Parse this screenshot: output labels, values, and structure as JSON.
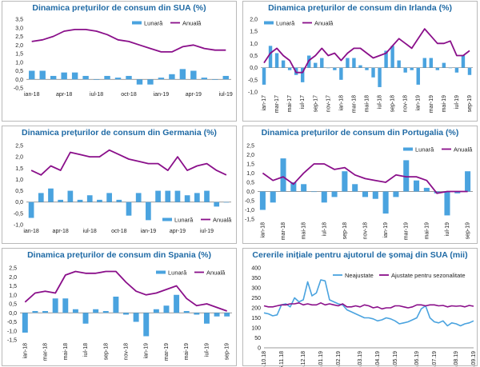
{
  "colors": {
    "monthly": "#4aa3df",
    "annual": "#8a0f8a",
    "claims_raw": "#4aa3df",
    "claims_sa": "#8a0f8a",
    "title": "#1f6aa5"
  },
  "chart_data": [
    {
      "id": "sua",
      "type": "bar+line",
      "title": "Dinamica prețurilor de consum din SUA (%)",
      "legend": [
        "Lunară",
        "Anuală"
      ],
      "legend_position": "top-right",
      "ylim": [
        -0.5,
        3.5
      ],
      "yticks": [
        "-0,5",
        "0,0",
        "0,5",
        "1,0",
        "1,5",
        "2,0",
        "2,5",
        "3,0",
        "3,5"
      ],
      "ytick_values": [
        -0.5,
        0,
        0.5,
        1,
        1.5,
        2,
        2.5,
        3,
        3.5
      ],
      "xtick_labels": [
        "ian-18",
        "apr-18",
        "iul-18",
        "oct-18",
        "ian-19",
        "apr-19",
        "iul-19"
      ],
      "xtick_index": [
        0,
        3,
        6,
        9,
        12,
        15,
        18
      ],
      "categories": [
        "ian-18",
        "feb-18",
        "mar-18",
        "apr-18",
        "mai-18",
        "iun-18",
        "iul-18",
        "aug-18",
        "sep-18",
        "oct-18",
        "noi-18",
        "dec-18",
        "ian-19",
        "feb-19",
        "mar-19",
        "apr-19",
        "mai-19",
        "iun-19",
        "iul-19"
      ],
      "monthly": [
        0.5,
        0.5,
        0.2,
        0.4,
        0.4,
        0.2,
        0.0,
        0.2,
        0.1,
        0.2,
        -0.3,
        -0.3,
        0.1,
        0.3,
        0.6,
        0.5,
        0.1,
        0.0,
        0.2
      ],
      "annual": [
        2.2,
        2.3,
        2.5,
        2.8,
        2.9,
        2.9,
        2.8,
        2.6,
        2.3,
        2.2,
        2.0,
        1.8,
        1.6,
        1.6,
        1.9,
        2.0,
        1.8,
        1.7,
        1.7
      ]
    },
    {
      "id": "irlanda",
      "type": "bar+line",
      "title": "Dinamica prețurilor de consum din Irlanda (%)",
      "legend": [
        "Lunară",
        "Anuală"
      ],
      "legend_position": "top-left",
      "ylim": [
        -1.0,
        2.0
      ],
      "yticks": [
        "-1,0",
        "-0,5",
        "0,0",
        "0,5",
        "1,0",
        "1,5",
        "2,0"
      ],
      "ytick_values": [
        -1,
        -0.5,
        0,
        0.5,
        1,
        1.5,
        2
      ],
      "xtick_labels": [
        "ian-17",
        "mar-17",
        "mai-17",
        "iul-17",
        "sep-17",
        "nov-17",
        "ian-18",
        "mar-18",
        "mai-18",
        "iul-18",
        "sep-18",
        "nov-18",
        "ian-19",
        "mar-19",
        "mai-19",
        "iul-19",
        "sep-19"
      ],
      "xtick_index": [
        0,
        2,
        4,
        6,
        8,
        10,
        12,
        14,
        16,
        18,
        20,
        22,
        24,
        26,
        28,
        30,
        32
      ],
      "categories": [
        "ian-17",
        "feb-17",
        "mar-17",
        "apr-17",
        "mai-17",
        "iun-17",
        "iul-17",
        "aug-17",
        "sep-17",
        "oct-17",
        "noi-17",
        "dec-17",
        "ian-18",
        "feb-18",
        "mar-18",
        "apr-18",
        "mai-18",
        "iun-18",
        "iul-18",
        "aug-18",
        "sep-18",
        "oct-18",
        "noi-18",
        "dec-18",
        "ian-19",
        "feb-19",
        "mar-19",
        "apr-19",
        "mai-19",
        "iun-19",
        "iul-19",
        "aug-19",
        "sep-19"
      ],
      "monthly": [
        -0.7,
        0.9,
        0.6,
        0.3,
        -0.1,
        -0.3,
        -0.6,
        0.5,
        0.2,
        0.4,
        0.0,
        -0.1,
        -0.5,
        0.4,
        0.4,
        0.1,
        -0.1,
        -0.4,
        -0.8,
        0.7,
        0.9,
        0.3,
        -0.2,
        -0.1,
        -0.7,
        0.4,
        0.4,
        -0.1,
        0.2,
        0.0,
        -0.2,
        0.5,
        -0.3
      ],
      "annual": [
        0.2,
        0.6,
        0.8,
        0.5,
        0.3,
        -0.2,
        -0.2,
        0.3,
        0.5,
        0.8,
        0.5,
        0.6,
        0.3,
        0.6,
        0.8,
        0.8,
        0.6,
        0.4,
        0.5,
        0.6,
        0.9,
        1.2,
        1.0,
        0.8,
        1.2,
        1.6,
        1.3,
        1.0,
        1.0,
        1.1,
        0.5,
        0.5,
        0.7
      ]
    },
    {
      "id": "germania",
      "type": "bar+line",
      "title": "Dinamica prețurilor de consum din Germania (%)",
      "legend": [
        "Lunară",
        "Anuală"
      ],
      "legend_position": "bottom-right",
      "ylim": [
        -1.0,
        2.5
      ],
      "yticks": [
        "-1,0",
        "-0,5",
        "0,0",
        "0,5",
        "1,0",
        "1,5",
        "2,0",
        "2,5"
      ],
      "ytick_values": [
        -1,
        -0.5,
        0,
        0.5,
        1,
        1.5,
        2,
        2.5
      ],
      "xtick_labels": [
        "ian-18",
        "apr-18",
        "iul-18",
        "oct-18",
        "ian-19",
        "apr-19",
        "iul-19"
      ],
      "xtick_index": [
        0,
        3,
        6,
        9,
        12,
        15,
        18
      ],
      "categories": [
        "ian-18",
        "feb-18",
        "mar-18",
        "apr-18",
        "mai-18",
        "iun-18",
        "iul-18",
        "aug-18",
        "sep-18",
        "oct-18",
        "noi-18",
        "dec-18",
        "ian-19",
        "feb-19",
        "mar-19",
        "apr-19",
        "mai-19",
        "iun-19",
        "iul-19",
        "aug-19",
        "sep-19"
      ],
      "monthly": [
        -0.7,
        0.4,
        0.6,
        0.1,
        0.5,
        0.1,
        0.3,
        0.1,
        0.4,
        0.1,
        -0.6,
        0.4,
        -0.8,
        0.5,
        0.5,
        0.5,
        0.3,
        0.4,
        0.5,
        -0.2,
        0.0
      ],
      "annual": [
        1.4,
        1.2,
        1.6,
        1.4,
        2.2,
        2.1,
        2.0,
        2.0,
        2.3,
        2.1,
        1.9,
        1.8,
        1.7,
        1.7,
        1.4,
        2.0,
        1.4,
        1.6,
        1.7,
        1.4,
        1.2
      ]
    },
    {
      "id": "portugalia",
      "type": "bar+line",
      "title": "Dinamica prețurilor de consum din Portugalia (%)",
      "legend": [
        "Lunară",
        "Anuală"
      ],
      "legend_position": "top-right",
      "ylim": [
        -1.5,
        2.5
      ],
      "yticks": [
        "-1,5",
        "-1,0",
        "-0,5",
        "0,0",
        "0,5",
        "1,0",
        "1,5",
        "2,0",
        "2,5"
      ],
      "ytick_values": [
        -1.5,
        -1,
        -0.5,
        0,
        0.5,
        1,
        1.5,
        2,
        2.5
      ],
      "xtick_labels": [
        "ian-18",
        "mar-18",
        "mai-18",
        "iul-18",
        "sep-18",
        "nov-18",
        "ian-19",
        "mar-19",
        "mai-19",
        "iul-19",
        "sep-19"
      ],
      "xtick_index": [
        0,
        2,
        4,
        6,
        8,
        10,
        12,
        14,
        16,
        18,
        20
      ],
      "categories": [
        "ian-18",
        "feb-18",
        "mar-18",
        "apr-18",
        "mai-18",
        "iun-18",
        "iul-18",
        "aug-18",
        "sep-18",
        "oct-18",
        "noi-18",
        "dec-18",
        "ian-19",
        "feb-19",
        "mar-19",
        "apr-19",
        "mai-19",
        "iun-19",
        "iul-19",
        "aug-19",
        "sep-19"
      ],
      "monthly": [
        -1.0,
        -0.6,
        1.8,
        0.5,
        0.4,
        0.0,
        -0.6,
        -0.3,
        1.1,
        0.4,
        -0.3,
        -0.4,
        -1.2,
        -0.3,
        1.7,
        0.6,
        0.2,
        -0.1,
        -1.3,
        -0.1,
        1.1
      ],
      "annual": [
        1.0,
        0.6,
        0.8,
        0.4,
        1.0,
        1.5,
        1.5,
        1.2,
        1.3,
        0.9,
        0.7,
        0.6,
        0.5,
        0.9,
        0.8,
        0.8,
        0.6,
        -0.1,
        0.0,
        0.0,
        0.0
      ]
    },
    {
      "id": "spania",
      "type": "bar+line",
      "title": "Dinamica prețurilor de consum din Spania (%)",
      "legend": [
        "Lunară",
        "Anuală"
      ],
      "legend_position": "top-right",
      "ylim": [
        -1.5,
        2.5
      ],
      "yticks": [
        "-1,5",
        "-1,0",
        "-0,5",
        "0,0",
        "0,5",
        "1,0",
        "1,5",
        "2,0",
        "2,5"
      ],
      "ytick_values": [
        -1.5,
        -1,
        -0.5,
        0,
        0.5,
        1,
        1.5,
        2,
        2.5
      ],
      "xtick_labels": [
        "ian-18",
        "mar-18",
        "mai-18",
        "iul-18",
        "sep-18",
        "nov-18",
        "ian-19",
        "mar-19",
        "mai-19",
        "iul-19",
        "sep-19"
      ],
      "xtick_index": [
        0,
        2,
        4,
        6,
        8,
        10,
        12,
        14,
        16,
        18,
        20
      ],
      "categories": [
        "ian-18",
        "feb-18",
        "mar-18",
        "apr-18",
        "mai-18",
        "iun-18",
        "iul-18",
        "aug-18",
        "sep-18",
        "oct-18",
        "noi-18",
        "dec-18",
        "ian-19",
        "feb-19",
        "mar-19",
        "apr-19",
        "mai-19",
        "iun-19",
        "iul-19",
        "aug-19",
        "sep-19"
      ],
      "monthly": [
        -1.1,
        0.1,
        0.1,
        0.8,
        0.8,
        0.2,
        -0.6,
        0.2,
        0.1,
        0.9,
        -0.1,
        -0.5,
        -1.3,
        0.2,
        0.4,
        1.0,
        0.1,
        -0.1,
        -0.6,
        -0.2,
        -0.2
      ],
      "annual": [
        0.6,
        1.1,
        1.2,
        1.1,
        2.1,
        2.3,
        2.2,
        2.2,
        2.3,
        2.3,
        1.7,
        1.2,
        1.0,
        1.1,
        1.3,
        1.5,
        0.8,
        0.4,
        0.5,
        0.3,
        0.1
      ]
    },
    {
      "id": "somaj",
      "type": "line",
      "title": "Cererile inițiale pentru ajutorul de șomaj din SUA (mii)",
      "legend": [
        "Neajustate",
        "Ajustate pentru sezonalitate"
      ],
      "legend_position": "top-right",
      "ylim": [
        0,
        400
      ],
      "yticks": [
        "0",
        "50",
        "100",
        "150",
        "200",
        "250",
        "300",
        "350",
        "400"
      ],
      "ytick_values": [
        0,
        50,
        100,
        150,
        200,
        250,
        300,
        350,
        400
      ],
      "xtick_labels": [
        "06.10.18",
        "06.11.18",
        "06.12.18",
        "06.01.19",
        "06.02.19",
        "06.03.19",
        "06.04.19",
        "06.05.19",
        "06.06.19",
        "06.07.19",
        "06.08.19",
        "06.09.19"
      ],
      "xtick_index": [
        0,
        4,
        9,
        13,
        17,
        22,
        26,
        30,
        35,
        39,
        44,
        48
      ],
      "series": [
        {
          "name": "Neajustate",
          "values": [
            175,
            170,
            160,
            165,
            215,
            220,
            205,
            250,
            230,
            240,
            330,
            260,
            275,
            340,
            335,
            240,
            230,
            220,
            215,
            190,
            180,
            170,
            160,
            150,
            150,
            145,
            135,
            140,
            150,
            145,
            135,
            120,
            125,
            130,
            140,
            150,
            195,
            210,
            150,
            130,
            125,
            135,
            110,
            125,
            120,
            110,
            120,
            125,
            135
          ]
        },
        {
          "name": "Ajustate pentru sezonalitate",
          "values": [
            210,
            205,
            205,
            210,
            215,
            215,
            220,
            220,
            225,
            215,
            220,
            215,
            215,
            225,
            215,
            220,
            215,
            210,
            220,
            205,
            205,
            210,
            205,
            215,
            210,
            200,
            205,
            195,
            200,
            200,
            210,
            210,
            205,
            200,
            205,
            215,
            215,
            210,
            215,
            215,
            210,
            212,
            205,
            210,
            208,
            210,
            205,
            212,
            208
          ]
        }
      ]
    }
  ]
}
